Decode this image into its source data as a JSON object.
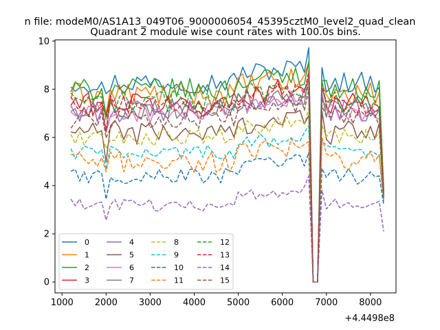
{
  "chart_data": {
    "type": "line",
    "suptitle": "n file: modeM0/AS1A13_049T06_9000006054_45395cztM0_level2_quad_clean",
    "title": "Quadrant 2 module wise count rates with 100.0s bins.",
    "xlabel": "",
    "ylabel": "",
    "x_offset_label": "+4.4498e8",
    "xlim": [
      840,
      8580
    ],
    "ylim": [
      -0.45,
      10.05
    ],
    "xticks": [
      1000,
      2000,
      3000,
      4000,
      5000,
      6000,
      7000,
      8000
    ],
    "yticks": [
      0,
      2,
      4,
      6,
      8,
      10
    ],
    "grid": false,
    "legend": {
      "placement": "lower-left",
      "columns": 4
    },
    "time_start": 1200,
    "time_step": 100,
    "dip": {
      "start": 6700,
      "end": 6800,
      "value": 0
    },
    "series": [
      {
        "name": "0",
        "color": "#1f77b4",
        "dash": "solid",
        "base": 8.3,
        "amp": 0.45,
        "end": 3.6
      },
      {
        "name": "1",
        "color": "#ff7f0e",
        "dash": "solid",
        "base": 7.8,
        "amp": 0.5,
        "end": 3.9
      },
      {
        "name": "2",
        "color": "#2ca02c",
        "dash": "solid",
        "base": 8.0,
        "amp": 0.45,
        "end": 3.8
      },
      {
        "name": "3",
        "color": "#d62728",
        "dash": "solid",
        "base": 7.4,
        "amp": 0.5,
        "end": 3.7
      },
      {
        "name": "4",
        "color": "#9467bd",
        "dash": "solid",
        "base": 7.1,
        "amp": 0.45,
        "end": 3.6
      },
      {
        "name": "5",
        "color": "#8c564b",
        "dash": "solid",
        "base": 6.2,
        "amp": 0.5,
        "end": 3.5
      },
      {
        "name": "6",
        "color": "#e377c2",
        "dash": "solid",
        "base": 7.0,
        "amp": 0.4,
        "end": 3.6
      },
      {
        "name": "7",
        "color": "#7f7f7f",
        "dash": "solid",
        "base": 7.2,
        "amp": 0.45,
        "end": 3.7
      },
      {
        "name": "8",
        "color": "#bcbd22",
        "dash": "dashed",
        "base": 6.0,
        "amp": 0.35,
        "end": 3.4
      },
      {
        "name": "9",
        "color": "#17becf",
        "dash": "dashed",
        "base": 5.4,
        "amp": 0.3,
        "end": 3.3
      },
      {
        "name": "10",
        "color": "#1f77b4",
        "dash": "dashed",
        "base": 4.4,
        "amp": 0.35,
        "end": 3.2
      },
      {
        "name": "11",
        "color": "#ff7f0e",
        "dash": "dashed",
        "base": 5.0,
        "amp": 0.45,
        "end": 3.4
      },
      {
        "name": "12",
        "color": "#2ca02c",
        "dash": "dashed",
        "base": 7.5,
        "amp": 0.45,
        "end": 3.6
      },
      {
        "name": "13",
        "color": "#d62728",
        "dash": "dashed",
        "base": 7.3,
        "amp": 0.45,
        "end": 3.7
      },
      {
        "name": "14",
        "color": "#9467bd",
        "dash": "dashed",
        "base": 3.2,
        "amp": 0.25,
        "end": 2.1
      },
      {
        "name": "15",
        "color": "#8c564b",
        "dash": "dashed",
        "base": 6.8,
        "amp": 0.45,
        "end": 3.5
      }
    ]
  }
}
